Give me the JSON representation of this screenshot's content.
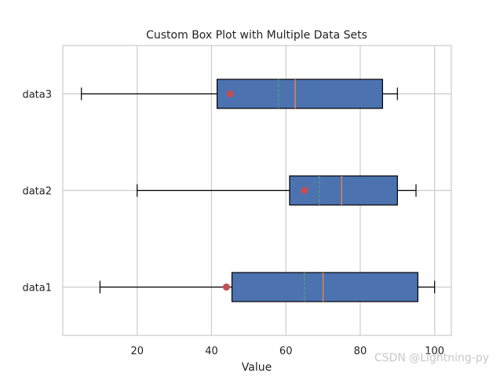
{
  "watermark": "CSDN @Lightning-py",
  "chart_data": {
    "type": "boxplot",
    "title": "Custom Box Plot with Multiple Data Sets",
    "xlabel": "Value",
    "ylabel": "",
    "orientation": "horizontal",
    "xlim": [
      0,
      104.5
    ],
    "xticks": [
      20,
      40,
      60,
      80,
      100
    ],
    "grid": true,
    "categories": [
      "data1",
      "data2",
      "data3"
    ],
    "series": [
      {
        "name": "data1",
        "whisker_low": 10,
        "q1": 45.5,
        "median": 70,
        "q3": 95.5,
        "whisker_high": 100,
        "mean": 65,
        "outlier_marker": 44
      },
      {
        "name": "data2",
        "whisker_low": 20,
        "q1": 61,
        "median": 75,
        "q3": 90,
        "whisker_high": 95,
        "mean": 69,
        "outlier_marker": 65
      },
      {
        "name": "data3",
        "whisker_low": 5,
        "q1": 41.5,
        "median": 62.5,
        "q3": 86,
        "whisker_high": 90,
        "mean": 58,
        "outlier_marker": 45
      }
    ],
    "colors": {
      "box_fill": "#4c72b0",
      "median": "#dd8452",
      "mean": "#55a868",
      "marker": "#c44e52",
      "grid": "#cccccc",
      "axes": "#cccccc"
    }
  }
}
